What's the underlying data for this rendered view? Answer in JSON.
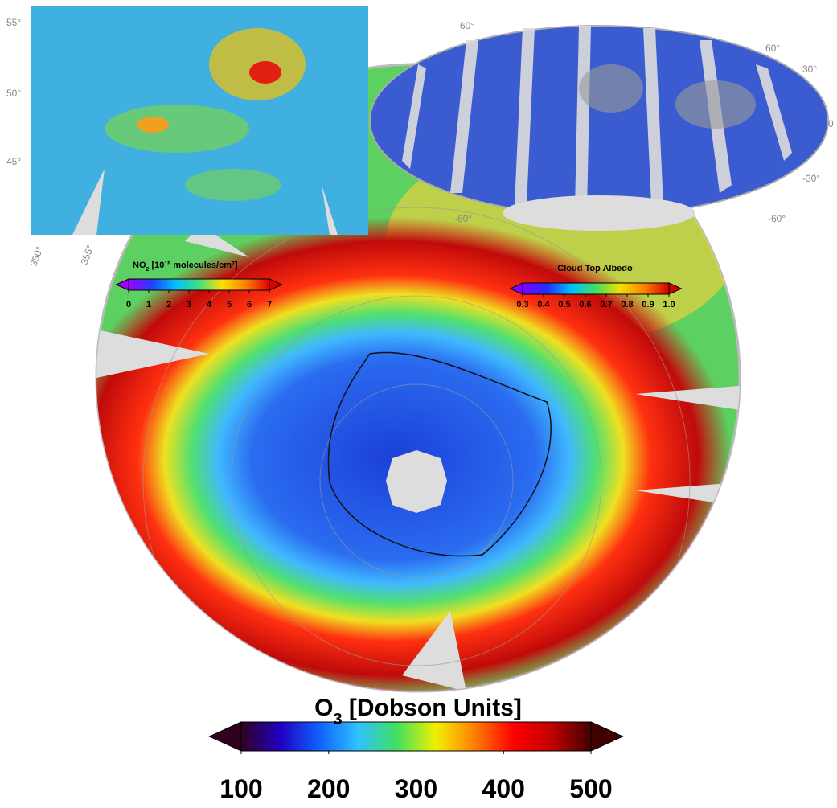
{
  "no2_inset": {
    "lat_labels": [
      "55°",
      "50°",
      "45°"
    ],
    "lon_labels": [
      "350°",
      "355°"
    ]
  },
  "global_inset": {
    "lat_labels": [
      "60°",
      "60°",
      "30°",
      "0",
      "-30°",
      "-60°",
      "-60°"
    ]
  },
  "colorbars": [
    {
      "title_parts": [
        "NO",
        "2",
        " [10",
        "15",
        " molecules/cm",
        "2",
        "]"
      ],
      "range": [
        0,
        7
      ],
      "ticks": [
        0,
        1,
        2,
        3,
        4,
        5,
        6,
        7
      ],
      "colors": [
        "#a000ff",
        "#2040ff",
        "#00c0ff",
        "#40e080",
        "#ffe000",
        "#ff8000",
        "#e00000"
      ]
    },
    {
      "title_parts": [
        "Cloud Top Albedo"
      ],
      "range": [
        0.3,
        1
      ],
      "ticks": [
        0.3,
        0.4,
        0.5,
        0.6,
        0.7,
        0.8,
        0.9,
        {
          "value": 1,
          "label": "1.0"
        }
      ],
      "colors": [
        "#8000ff",
        "#2030ff",
        "#00c0ff",
        "#40e060",
        "#f0e000",
        "#ff8000",
        "#d00000"
      ]
    },
    {
      "title_parts": [
        "O",
        "3",
        " [Dobson Units]"
      ],
      "range": [
        100,
        500
      ],
      "ticks": [
        100,
        200,
        300,
        400,
        500
      ],
      "colors": [
        "#300020",
        "#2000c0",
        "#1060ff",
        "#30c0ff",
        "#40e060",
        "#f0f000",
        "#ff8000",
        "#ff0000",
        "#c00000",
        "#400000"
      ]
    }
  ]
}
